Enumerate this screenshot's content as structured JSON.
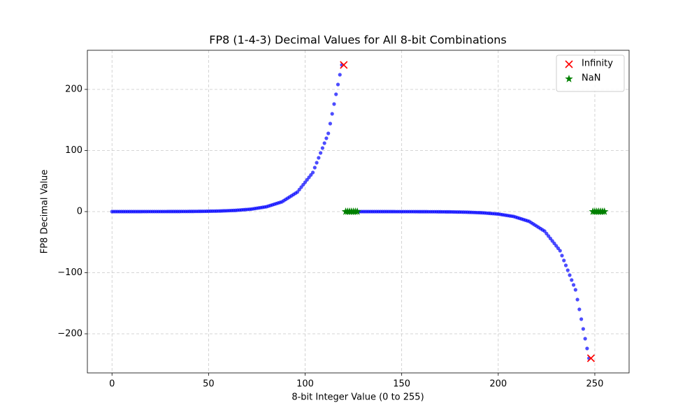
{
  "chart_data": {
    "type": "scatter",
    "title": "FP8 (1-4-3) Decimal Values for All 8-bit Combinations",
    "x_label": "8-bit Integer Value (0 to 255)",
    "y_label": "FP8 Decimal Value",
    "xlim": [
      -12.75,
      267.75
    ],
    "ylim": [
      -264,
      264
    ],
    "xticks": [
      0,
      50,
      100,
      150,
      200,
      250
    ],
    "yticks": [
      {
        "value": -200,
        "label": "−200"
      },
      {
        "value": -100,
        "label": "−100"
      },
      0,
      100,
      200
    ],
    "grid": true,
    "legend": "upper right",
    "series": [
      {
        "color": "#0000ff",
        "marker": "circle",
        "x": [
          0,
          1,
          2,
          3,
          4,
          5,
          6,
          7,
          8,
          9,
          10,
          11,
          12,
          13,
          14,
          15,
          16,
          17,
          18,
          19,
          20,
          21,
          22,
          23,
          24,
          25,
          26,
          27,
          28,
          29,
          30,
          31,
          32,
          33,
          34,
          35,
          36,
          37,
          38,
          39,
          40,
          41,
          42,
          43,
          44,
          45,
          46,
          47,
          48,
          49,
          50,
          51,
          52,
          53,
          54,
          55,
          56,
          57,
          58,
          59,
          60,
          61,
          62,
          63,
          64,
          65,
          66,
          67,
          68,
          69,
          70,
          71,
          72,
          73,
          74,
          75,
          76,
          77,
          78,
          79,
          80,
          81,
          82,
          83,
          84,
          85,
          86,
          87,
          88,
          89,
          90,
          91,
          92,
          93,
          94,
          95,
          96,
          97,
          98,
          99,
          100,
          101,
          102,
          103,
          104,
          105,
          106,
          107,
          108,
          109,
          110,
          111,
          112,
          113,
          114,
          115,
          116,
          117,
          118,
          119,
          128,
          129,
          130,
          131,
          132,
          133,
          134,
          135,
          136,
          137,
          138,
          139,
          140,
          141,
          142,
          143,
          144,
          145,
          146,
          147,
          148,
          149,
          150,
          151,
          152,
          153,
          154,
          155,
          156,
          157,
          158,
          159,
          160,
          161,
          162,
          163,
          164,
          165,
          166,
          167,
          168,
          169,
          170,
          171,
          172,
          173,
          174,
          175,
          176,
          177,
          178,
          179,
          180,
          181,
          182,
          183,
          184,
          185,
          186,
          187,
          188,
          189,
          190,
          191,
          192,
          193,
          194,
          195,
          196,
          197,
          198,
          199,
          200,
          201,
          202,
          203,
          204,
          205,
          206,
          207,
          208,
          209,
          210,
          211,
          212,
          213,
          214,
          215,
          216,
          217,
          218,
          219,
          220,
          221,
          222,
          223,
          224,
          225,
          226,
          227,
          228,
          229,
          230,
          231,
          232,
          233,
          234,
          235,
          236,
          237,
          238,
          239,
          240,
          241,
          242,
          243,
          244,
          245,
          246,
          247
        ],
        "values": [
          0,
          0.001953125,
          0.00390625,
          0.005859375,
          0.0078125,
          0.009765625,
          0.01171875,
          0.013671875,
          0.015625,
          0.017578125,
          0.01953125,
          0.021484375,
          0.0234375,
          0.025390625,
          0.02734375,
          0.029296875,
          0.03125,
          0.03515625,
          0.0390625,
          0.04296875,
          0.046875,
          0.05078125,
          0.0546875,
          0.05859375,
          0.0625,
          0.0703125,
          0.078125,
          0.0859375,
          0.09375,
          0.1015625,
          0.109375,
          0.1171875,
          0.125,
          0.140625,
          0.15625,
          0.171875,
          0.1875,
          0.203125,
          0.21875,
          0.234375,
          0.25,
          0.28125,
          0.3125,
          0.34375,
          0.375,
          0.40625,
          0.4375,
          0.46875,
          0.5,
          0.5625,
          0.625,
          0.6875,
          0.75,
          0.8125,
          0.875,
          0.9375,
          1,
          1.125,
          1.25,
          1.375,
          1.5,
          1.625,
          1.75,
          1.875,
          2,
          2.25,
          2.5,
          2.75,
          3,
          3.25,
          3.5,
          3.75,
          4,
          4.5,
          5,
          5.5,
          6,
          6.5,
          7,
          7.5,
          8,
          9,
          10,
          11,
          12,
          13,
          14,
          15,
          16,
          18,
          20,
          22,
          24,
          26,
          28,
          30,
          32,
          36,
          40,
          44,
          48,
          52,
          56,
          60,
          64,
          72,
          80,
          88,
          96,
          104,
          112,
          120,
          128,
          144,
          160,
          176,
          192,
          208,
          224,
          240,
          0,
          -0.001953125,
          -0.00390625,
          -0.005859375,
          -0.0078125,
          -0.009765625,
          -0.01171875,
          -0.013671875,
          -0.015625,
          -0.017578125,
          -0.01953125,
          -0.021484375,
          -0.0234375,
          -0.025390625,
          -0.02734375,
          -0.029296875,
          -0.03125,
          -0.03515625,
          -0.0390625,
          -0.04296875,
          -0.046875,
          -0.05078125,
          -0.0546875,
          -0.05859375,
          -0.0625,
          -0.0703125,
          -0.078125,
          -0.0859375,
          -0.09375,
          -0.1015625,
          -0.109375,
          -0.1171875,
          -0.125,
          -0.140625,
          -0.15625,
          -0.171875,
          -0.1875,
          -0.203125,
          -0.21875,
          -0.234375,
          -0.25,
          -0.28125,
          -0.3125,
          -0.34375,
          -0.375,
          -0.40625,
          -0.4375,
          -0.46875,
          -0.5,
          -0.5625,
          -0.625,
          -0.6875,
          -0.75,
          -0.8125,
          -0.875,
          -0.9375,
          -1,
          -1.125,
          -1.25,
          -1.375,
          -1.5,
          -1.625,
          -1.75,
          -1.875,
          -2,
          -2.25,
          -2.5,
          -2.75,
          -3,
          -3.25,
          -3.5,
          -3.75,
          -4,
          -4.5,
          -5,
          -5.5,
          -6,
          -6.5,
          -7,
          -7.5,
          -8,
          -9,
          -10,
          -11,
          -12,
          -13,
          -14,
          -15,
          -16,
          -18,
          -20,
          -22,
          -24,
          -26,
          -28,
          -30,
          -32,
          -36,
          -40,
          -44,
          -48,
          -52,
          -56,
          -60,
          -64,
          -72,
          -80,
          -88,
          -96,
          -104,
          -112,
          -120,
          -128,
          -144,
          -160,
          -176,
          -192,
          -208,
          -224,
          -240
        ]
      },
      {
        "name": "Infinity",
        "color": "#ff0000",
        "marker": "x",
        "x": [
          120,
          248
        ],
        "values": [
          240,
          -240
        ]
      },
      {
        "name": "NaN",
        "color": "#008000",
        "marker": "star",
        "x": [
          121,
          122,
          123,
          124,
          125,
          126,
          127,
          249,
          250,
          251,
          252,
          253,
          254,
          255
        ],
        "values": [
          0,
          0,
          0,
          0,
          0,
          0,
          0,
          0,
          0,
          0,
          0,
          0,
          0,
          0
        ]
      }
    ]
  }
}
